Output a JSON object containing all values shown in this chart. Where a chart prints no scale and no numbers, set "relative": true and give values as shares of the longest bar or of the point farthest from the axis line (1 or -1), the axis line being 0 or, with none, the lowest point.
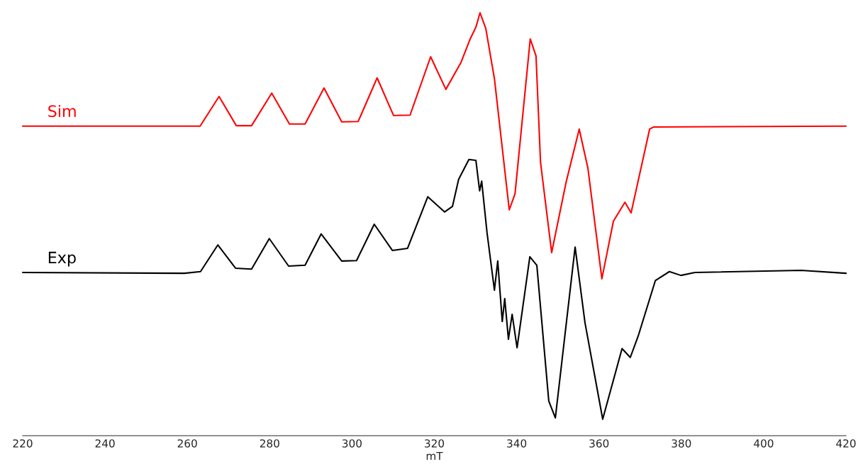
{
  "chart_data": {
    "type": "line",
    "xlabel": "mT",
    "relative": true,
    "xlim": [
      220,
      420
    ],
    "xticks": [
      220,
      240,
      260,
      280,
      300,
      320,
      340,
      360,
      380,
      400,
      420
    ],
    "tick_labels": "x",
    "grid": false,
    "legend": false,
    "marker": "none",
    "line_style": "solid",
    "series": [
      {
        "name": "Sim",
        "color": "#ff0000",
        "x": [
          220,
          259.3,
          263.1,
          267.7,
          271.9,
          275.6,
          280.5,
          284.8,
          288.6,
          293.2,
          297.5,
          301.5,
          306.1,
          310.1,
          314.1,
          319.1,
          322.8,
          326.5,
          328.7,
          330.1,
          331.1,
          332.5,
          334.6,
          338.2,
          339.6,
          343.3,
          344.7,
          345.8,
          348.5,
          352.0,
          355.2,
          357.3,
          360.7,
          363.5,
          366.3,
          367.8,
          372.3,
          373.3,
          420
        ],
        "values": [
          0.732,
          0.732,
          0.732,
          0.802,
          0.733,
          0.733,
          0.81,
          0.737,
          0.737,
          0.822,
          0.742,
          0.743,
          0.846,
          0.757,
          0.758,
          0.896,
          0.819,
          0.883,
          0.938,
          0.966,
          1.0,
          0.963,
          0.844,
          0.534,
          0.572,
          0.938,
          0.898,
          0.646,
          0.433,
          0.599,
          0.725,
          0.633,
          0.371,
          0.507,
          0.552,
          0.527,
          0.725,
          0.73,
          0.732
        ]
      },
      {
        "name": "Exp",
        "color": "#000000",
        "x": [
          220,
          259.3,
          263.2,
          267.4,
          271.7,
          275.6,
          279.9,
          284.6,
          288.6,
          292.5,
          297.5,
          301.1,
          305.4,
          309.8,
          313.5,
          318.4,
          322.5,
          324.4,
          325.9,
          328.4,
          330.1,
          331.0,
          331.5,
          332.8,
          334.6,
          335.4,
          336.5,
          337.1,
          338.0,
          338.9,
          340.1,
          343.2,
          344.9,
          347.8,
          349.4,
          354.2,
          356.6,
          360.9,
          365.6,
          367.6,
          369.5,
          373.7,
          377.1,
          379.9,
          383.3,
          409.1,
          420
        ],
        "values": [
          0.386,
          0.384,
          0.388,
          0.451,
          0.396,
          0.394,
          0.466,
          0.401,
          0.403,
          0.477,
          0.413,
          0.414,
          0.5,
          0.438,
          0.443,
          0.565,
          0.529,
          0.542,
          0.606,
          0.653,
          0.651,
          0.579,
          0.602,
          0.48,
          0.344,
          0.413,
          0.27,
          0.324,
          0.228,
          0.287,
          0.208,
          0.423,
          0.403,
          0.082,
          0.042,
          0.446,
          0.267,
          0.039,
          0.206,
          0.185,
          0.235,
          0.367,
          0.388,
          0.379,
          0.386,
          0.391,
          0.384
        ]
      }
    ]
  }
}
